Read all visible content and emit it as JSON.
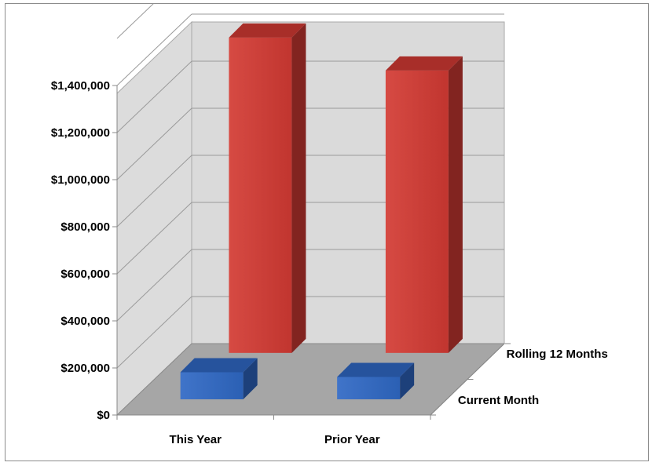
{
  "chart_data": {
    "type": "bar",
    "categories": [
      "This Year",
      "Prior Year"
    ],
    "series": [
      {
        "name": "Rolling 12 Months",
        "values": [
          1340000,
          1200000
        ],
        "color": "#d23a33"
      },
      {
        "name": "Current Month",
        "values": [
          115000,
          95000
        ],
        "color": "#2f68c4"
      }
    ],
    "y_tick_labels": [
      "$0",
      "$200,000",
      "$400,000",
      "$600,000",
      "$800,000",
      "$1,000,000",
      "$1,200,000",
      "$1,400,000"
    ],
    "ylim": [
      0,
      1400000
    ],
    "grid": true,
    "legend": "depth-axis labels on right"
  }
}
